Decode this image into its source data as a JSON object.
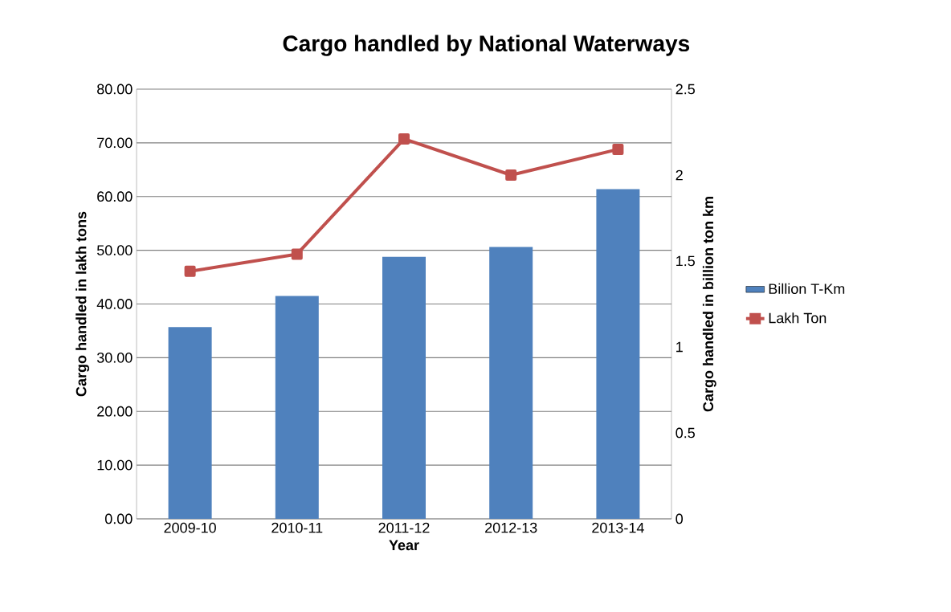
{
  "chart_data": {
    "type": "bar",
    "title": "Cargo handled by National Waterways",
    "xlabel": "Year",
    "ylabel": "Cargo handled in lakh tons",
    "y2label": "Cargo handled in billion ton km",
    "categories": [
      "2009-10",
      "2010-11",
      "2011-12",
      "2012-13",
      "2013-14"
    ],
    "series": [
      {
        "name": "Billion T-Km",
        "color": "#4f81bd",
        "values": [
          35.7,
          41.5,
          48.8,
          50.6,
          61.4
        ]
      },
      {
        "name": "Lakh Ton",
        "type": "line",
        "axis": "y2",
        "color": "#c0504d",
        "marker": "square",
        "values": [
          1.44,
          1.54,
          2.21,
          2.0,
          2.15
        ]
      }
    ],
    "ylim": [
      0,
      80
    ],
    "yticks": [
      {
        "value": 0,
        "label": "0.00"
      },
      {
        "value": 10,
        "label": "10.00"
      },
      {
        "value": 20,
        "label": "20.00"
      },
      {
        "value": 30,
        "label": "30.00"
      },
      {
        "value": 40,
        "label": "40.00"
      },
      {
        "value": 50,
        "label": "50.00"
      },
      {
        "value": 60,
        "label": "60.00"
      },
      {
        "value": 70,
        "label": "70.00"
      },
      {
        "value": 80,
        "label": "80.00"
      }
    ],
    "y2lim": [
      0,
      2.5
    ],
    "y2ticks": [
      0,
      0.5,
      1,
      1.5,
      2,
      2.5
    ],
    "grid": "y",
    "legend": "right"
  }
}
